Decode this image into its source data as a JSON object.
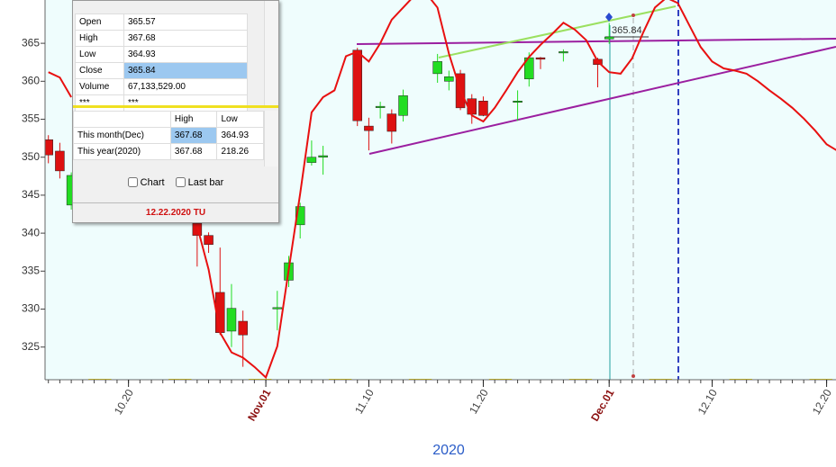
{
  "chart_data": {
    "type": "candlestick",
    "x_label": "2020",
    "xlim": [
      "10.12",
      "12.22"
    ],
    "xticks": [
      "10.20",
      {
        "value": "11.01",
        "label": "Nov.01"
      },
      "11.10",
      "11.20",
      {
        "value": "12.01",
        "label": "Dec.01"
      },
      "12.10",
      "12.20"
    ],
    "ylim": [
      320.7,
      370.7
    ],
    "yticks": [
      325,
      330,
      335,
      340,
      345,
      350,
      355,
      360,
      365
    ],
    "price_label": "365.84",
    "series": [
      {
        "type": "candlestick",
        "up_color": "#22dd22",
        "down_color": "#dd1111",
        "x": [
          "10.13",
          "10.14",
          "10.15",
          "10.26",
          "10.27",
          "10.28",
          "10.29",
          "10.30",
          "11.02",
          "11.03",
          "11.04",
          "11.05",
          "11.06",
          "11.09",
          "11.10",
          "11.11",
          "11.12",
          "11.13",
          "11.16",
          "11.17",
          "11.18",
          "11.19",
          "11.20",
          "11.23",
          "11.24",
          "11.25",
          "11.27",
          "11.30",
          "12.01"
        ],
        "open": [
          352.3,
          350.8,
          343.7,
          341.3,
          339.7,
          332.2,
          327.1,
          328.4,
          330.1,
          333.8,
          341.1,
          349.3,
          350.0,
          364.1,
          354.1,
          356.6,
          355.7,
          355.5,
          361.0,
          360.0,
          361.0,
          357.7,
          357.4,
          357.3,
          360.3,
          363.1,
          363.8,
          362.9,
          365.57
        ],
        "high": [
          352.9,
          351.9,
          348.0,
          342.0,
          340.1,
          338.1,
          333.3,
          329.8,
          332.4,
          337.0,
          344.0,
          352.2,
          351.5,
          364.4,
          355.2,
          357.3,
          356.3,
          358.9,
          363.6,
          361.4,
          361.5,
          358.3,
          358.0,
          358.8,
          363.8,
          363.2,
          364.2,
          363.1,
          367.68
        ],
        "low": [
          349.2,
          347.2,
          343.1,
          335.6,
          337.4,
          326.6,
          325.0,
          322.4,
          327.2,
          332.9,
          339.3,
          348.9,
          347.7,
          354.1,
          350.9,
          355.1,
          351.8,
          354.7,
          359.8,
          358.8,
          356.2,
          354.4,
          355.4,
          354.8,
          359.3,
          361.6,
          362.6,
          359.2,
          364.93
        ],
        "close": [
          350.3,
          348.2,
          347.6,
          339.7,
          338.5,
          326.9,
          330.1,
          326.6,
          330.2,
          336.1,
          343.5,
          350.0,
          350.2,
          354.8,
          353.5,
          356.7,
          353.4,
          358.1,
          362.6,
          360.6,
          356.5,
          355.65,
          355.5,
          357.4,
          363.1,
          362.9,
          363.9,
          362.2,
          365.84
        ]
      },
      {
        "type": "line",
        "color": "#e81010",
        "x": [
          "10.13",
          "10.14",
          "10.15",
          "10.20",
          "10.26",
          "10.27",
          "10.28",
          "10.29",
          "10.30",
          "10.31",
          "11.01",
          "11.02",
          "11.03",
          "11.04",
          "11.05",
          "11.06",
          "11.07",
          "11.08",
          "11.09",
          "11.10",
          "11.11",
          "11.12",
          "11.13",
          "11.14",
          "11.15",
          "11.16",
          "11.17",
          "11.18",
          "11.19",
          "11.20",
          "11.21",
          "11.22",
          "11.23",
          "11.24",
          "11.25",
          "11.26",
          "11.27",
          "11.28",
          "11.29",
          "11.30",
          "12.01",
          "12.02",
          "12.03",
          "12.04",
          "12.05",
          "12.06",
          "12.07",
          "12.08",
          "12.09",
          "12.10",
          "12.11",
          "12.12",
          "12.13",
          "12.14",
          "12.15",
          "12.16",
          "12.17",
          "12.18",
          "12.19",
          "12.20",
          "12.21"
        ],
        "values": [
          361.2,
          360.5,
          357.9,
          null,
          340.9,
          335.2,
          326.9,
          324.3,
          323.6,
          322.4,
          321.0,
          325.1,
          335.2,
          345.2,
          355.9,
          357.9,
          358.8,
          363.3,
          363.9,
          362.6,
          365.0,
          368.1,
          369.7,
          371.3,
          371.6,
          369.7,
          363.6,
          358.8,
          355.5,
          354.7,
          356.5,
          358.8,
          361.2,
          363.2,
          364.8,
          366.2,
          367.7,
          366.8,
          365.4,
          362.6,
          361.2,
          361.0,
          363.0,
          366.5,
          369.7,
          371.0,
          370.3,
          367.4,
          364.5,
          362.6,
          361.7,
          361.4,
          361.0,
          360.0,
          358.8,
          357.7,
          356.5,
          355.1,
          353.5,
          351.7,
          350.8
        ]
      }
    ]
  },
  "info_panel": {
    "quote": [
      [
        "Open",
        "365.57"
      ],
      [
        "High",
        "367.68"
      ],
      [
        "Low",
        "364.93"
      ],
      [
        "Close",
        "365.84"
      ],
      [
        "Volume",
        "67,133,529.00"
      ],
      [
        "***",
        "***"
      ]
    ],
    "range_header": [
      "High",
      "Low"
    ],
    "range_rows": [
      [
        "This month(Dec)",
        "367.68",
        "364.93"
      ],
      [
        "This year(2020)",
        "367.68",
        "218.26"
      ]
    ],
    "options": [
      "Chart",
      "Last bar"
    ],
    "footer": "12.22.2020 TU"
  }
}
